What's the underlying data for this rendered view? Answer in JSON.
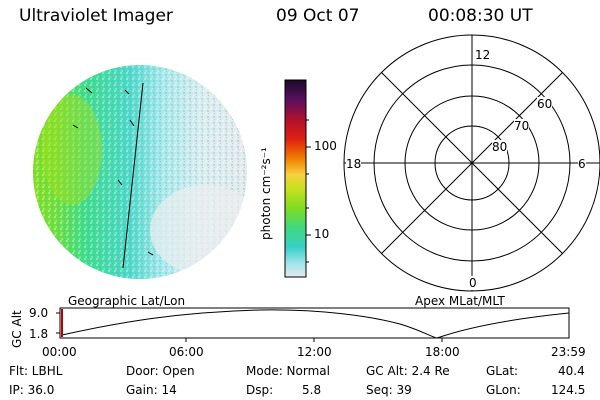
{
  "header": {
    "title": "Ultraviolet Imager",
    "date": "09 Oct 07",
    "time": "00:08:30 UT"
  },
  "colorbar": {
    "unit_label": "photon cm⁻²s⁻¹",
    "ticks": [
      "100",
      "10"
    ]
  },
  "polar": {
    "mlt_labels": [
      "12",
      "18",
      "6",
      "0"
    ],
    "lat_labels": [
      "60",
      "70",
      "80"
    ]
  },
  "captions": {
    "left": "Geographic Lat/Lon",
    "right": "Apex MLat/MLT"
  },
  "altitude_plot": {
    "ylabel": "GC Alt",
    "y_ticks": [
      "9.0",
      "1.8"
    ],
    "x_ticks": [
      "00:00",
      "06:00",
      "12:00",
      "18:00",
      "23:59"
    ]
  },
  "status": {
    "filter": "Flt: LBHL",
    "ip": "IP: 36.0",
    "door": "Door: Open",
    "gain": "Gain: 14",
    "mode": "Mode: Normal",
    "dsp_label": "Dsp:",
    "dsp_value": "5.8",
    "gc_alt": "GC Alt: 2.4 Re",
    "seq": "Seq: 39",
    "glat_label": "GLat:",
    "glat_value": "40.4",
    "glon_label": "GLon:",
    "glon_value": "124.5"
  }
}
